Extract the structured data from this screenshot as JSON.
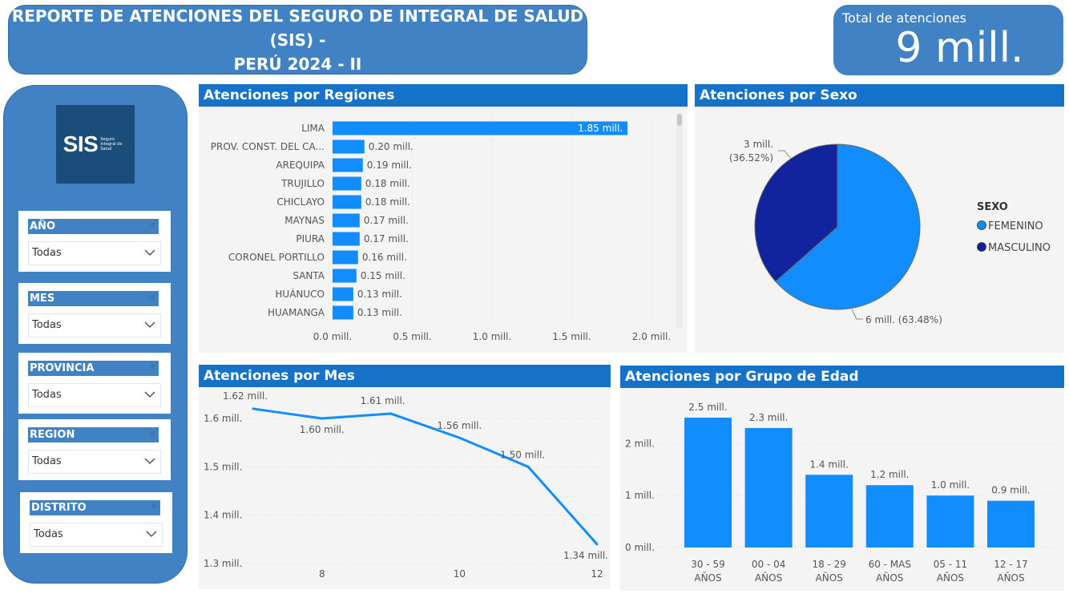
{
  "header": {
    "title_line1": "REPORTE DE ATENCIONES DEL SEGURO DE INTEGRAL DE SALUD (SIS) -",
    "title_line2": "PERÚ 2024 - II"
  },
  "kpi": {
    "label": "Total de atenciones",
    "value": "9 mill."
  },
  "logo": {
    "word": "SIS",
    "sub": "Seguro Integral de Salud"
  },
  "filters": [
    {
      "label": "AÑO",
      "value": "Todas"
    },
    {
      "label": "MES",
      "value": "Todas"
    },
    {
      "label": "PROVINCIA",
      "value": "Todas"
    },
    {
      "label": "REGION",
      "value": "Todas"
    },
    {
      "label": "DISTRITO",
      "value": "Todas"
    }
  ],
  "colors": {
    "accent": "#4182c4",
    "header": "#1572c8",
    "bar": "#118dff",
    "dark": "#12239e"
  },
  "panels": {
    "regiones": "Atenciones por Regiones",
    "sexo": "Atenciones por Sexo",
    "mes": "Atenciones por Mes",
    "edad": "Atenciones por Grupo de Edad"
  },
  "chart_data": [
    {
      "type": "bar",
      "orientation": "horizontal",
      "title": "Atenciones por Regiones",
      "categories": [
        "LIMA",
        "PROV. CONST. DEL CA...",
        "AREQUIPA",
        "TRUJILLO",
        "CHICLAYO",
        "MAYNAS",
        "PIURA",
        "CORONEL PORTILLO",
        "SANTA",
        "HUÁNUCO",
        "HUAMANGA"
      ],
      "values": [
        1.85,
        0.2,
        0.19,
        0.18,
        0.18,
        0.17,
        0.17,
        0.16,
        0.15,
        0.13,
        0.13
      ],
      "labels": [
        "1.85 mill.",
        "0.20 mill.",
        "0.19 mill.",
        "0.18 mill.",
        "0.18 mill.",
        "0.17 mill.",
        "0.17 mill.",
        "0.16 mill.",
        "0.15 mill.",
        "0.13 mill.",
        "0.13 mill."
      ],
      "xticks": [
        "0.0 mill.",
        "0.5 mill.",
        "1.0 mill.",
        "1.5 mill.",
        "2.0 mill."
      ],
      "xlim": [
        0,
        2.0
      ]
    },
    {
      "type": "pie",
      "title": "Atenciones por Sexo",
      "legend_title": "SEXO",
      "legend_position": "right",
      "slices": [
        {
          "name": "FEMENINO",
          "value": 63.48,
          "label": "6 mill. (63.48%)",
          "color": "#118dff"
        },
        {
          "name": "MASCULINO",
          "value": 36.52,
          "label_line1": "3 mill.",
          "label_line2": "(36.52%)",
          "color": "#12239e"
        }
      ]
    },
    {
      "type": "line",
      "title": "Atenciones por Mes",
      "x": [
        7,
        8,
        9,
        10,
        11,
        12
      ],
      "values": [
        1.62,
        1.6,
        1.61,
        1.56,
        1.5,
        1.34
      ],
      "labels": [
        "1.62 mill.",
        "1.60 mill.",
        "1.61 mill.",
        "1.56 mill.",
        "1.50 mill.",
        "1.34 mill."
      ],
      "xticks": [
        8,
        10,
        12
      ],
      "yticks": [
        "1.3 mill.",
        "1.4 mill.",
        "1.5 mill.",
        "1.6 mill."
      ],
      "ylim": [
        1.3,
        1.6
      ]
    },
    {
      "type": "bar",
      "title": "Atenciones por Grupo de Edad",
      "categories_line1": [
        "30 - 59",
        "00 - 04",
        "18 - 29",
        "60 - MAS",
        "05 - 11",
        "12 - 17"
      ],
      "categories_line2": [
        "AÑOS",
        "AÑOS",
        "AÑOS",
        "AÑOS",
        "AÑOS",
        "AÑOS"
      ],
      "values": [
        2.5,
        2.3,
        1.4,
        1.2,
        1.0,
        0.9
      ],
      "labels": [
        "2.5 mill.",
        "2.3 mill.",
        "1.4 mill.",
        "1.2 mill.",
        "1.0 mill.",
        "0.9 mill."
      ],
      "yticks": [
        "0 mill.",
        "1 mill.",
        "2 mill."
      ],
      "ylim": [
        0,
        2.5
      ]
    }
  ]
}
